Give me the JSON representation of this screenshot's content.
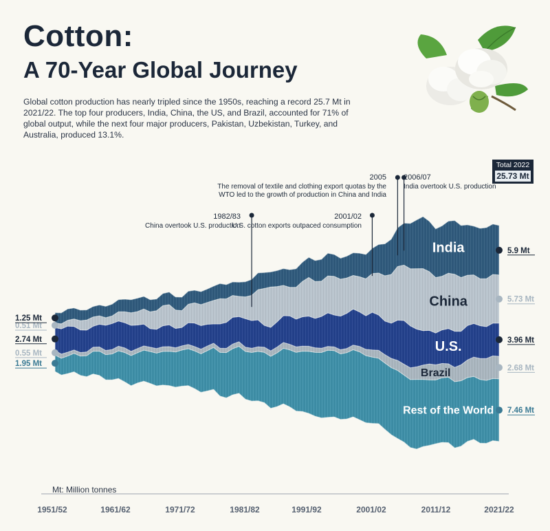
{
  "title_line1": "Cotton:",
  "title_line2": "A 70-Year Global Journey",
  "intro": "Global cotton production has nearly tripled since the 1950s, reaching a record 25.7 Mt in 2021/22. The top four producers, India, China, the US, and Brazil, accounted for 71% of global output, while the next four major producers, Pakistan, Uzbekistan, Turkey, and Australia, produced 13.1%.",
  "total_box": {
    "label": "Total 2022",
    "value": "25.73 Mt"
  },
  "unit_note": "Mt: Million tonnes",
  "colors": {
    "india": "#2f5a7c",
    "china": "#b9c4cd",
    "us": "#23418c",
    "brazil": "#aab6bf",
    "rest": "#3e8fa8",
    "dark_text": "#1b2738",
    "light_label": "#a8b6c1",
    "background": "#f9f8f2"
  },
  "annotations": [
    {
      "year": "1982/83",
      "text": "China overtook U.S. production"
    },
    {
      "year": "2001/02",
      "text": "U.S. cotton exports outpaced consumption"
    },
    {
      "year": "2005",
      "text_lines": [
        "The removal of textile and clothing export quotas by the",
        "WTO led to the growth of production in China and India"
      ]
    },
    {
      "year": "2006/07",
      "text": "India overtook U.S. production"
    }
  ],
  "chart_data": {
    "type": "area",
    "subtype": "stacked-streamgraph",
    "x_ticks": [
      "1951/52",
      "1961/62",
      "1971/72",
      "1981/82",
      "1991/92",
      "2001/02",
      "2011/12",
      "2021/22"
    ],
    "x_start": 1951,
    "x_end": 2021,
    "stack_order_bottom_to_top": [
      "Rest of the World",
      "Brazil",
      "U.S.",
      "China",
      "India"
    ],
    "series": [
      {
        "name": "Rest of the World",
        "label_start": "1.95 Mt",
        "label_end": "7.46 Mt",
        "values": [
          1.95,
          2.0,
          2.1,
          2.2,
          2.3,
          2.5,
          2.7,
          2.9,
          3.0,
          3.1,
          3.3,
          3.5,
          3.6,
          3.6,
          3.7,
          3.8,
          3.9,
          4.0,
          4.1,
          4.2,
          4.3,
          4.4,
          4.5,
          4.6,
          4.8,
          5.0,
          5.2,
          5.4,
          5.5,
          5.6,
          5.7,
          5.8,
          5.9,
          6.0,
          6.2,
          6.4,
          6.6,
          6.8,
          7.0,
          7.2,
          7.4,
          7.6,
          7.8,
          8.0,
          7.9,
          7.8,
          7.9,
          8.0,
          8.1,
          8.0,
          7.9,
          7.8,
          7.9,
          8.0,
          8.1,
          8.0,
          8.1,
          8.3,
          8.0,
          7.8,
          7.6,
          7.7,
          7.8,
          7.9,
          7.8,
          7.6,
          7.5,
          7.6,
          7.5,
          7.4,
          7.46
        ]
      },
      {
        "name": "Brazil",
        "label_start": "0.55 Mt",
        "label_end": "2.68 Mt",
        "values": [
          0.55,
          0.5,
          0.45,
          0.4,
          0.42,
          0.45,
          0.48,
          0.5,
          0.5,
          0.52,
          0.55,
          0.55,
          0.5,
          0.5,
          0.5,
          0.52,
          0.55,
          0.55,
          0.55,
          0.5,
          0.5,
          0.5,
          0.52,
          0.55,
          0.55,
          0.5,
          0.5,
          0.5,
          0.55,
          0.55,
          0.5,
          0.5,
          0.55,
          0.6,
          0.65,
          0.7,
          0.7,
          0.65,
          0.65,
          0.6,
          0.6,
          0.55,
          0.5,
          0.45,
          0.45,
          0.5,
          0.5,
          0.55,
          0.65,
          0.75,
          0.85,
          0.95,
          1.0,
          1.1,
          1.2,
          1.3,
          1.4,
          1.5,
          1.7,
          1.9,
          1.8,
          1.7,
          1.6,
          1.7,
          1.9,
          2.1,
          2.3,
          2.5,
          2.6,
          2.7,
          2.68
        ]
      },
      {
        "name": "U.S.",
        "label_start": "2.74 Mt",
        "label_end": "3.96 Mt",
        "values": [
          2.74,
          3.0,
          3.1,
          2.8,
          2.7,
          2.6,
          2.5,
          2.7,
          3.0,
          3.1,
          3.0,
          3.0,
          3.1,
          2.8,
          2.6,
          2.2,
          2.3,
          2.5,
          2.6,
          2.3,
          2.2,
          2.6,
          2.8,
          2.8,
          2.6,
          2.3,
          2.9,
          3.1,
          3.2,
          3.0,
          3.4,
          3.3,
          3.2,
          2.6,
          2.8,
          3.0,
          3.2,
          3.4,
          3.3,
          3.5,
          3.6,
          3.5,
          3.8,
          4.0,
          3.8,
          4.0,
          4.2,
          4.3,
          4.1,
          4.0,
          4.5,
          4.2,
          4.0,
          4.2,
          4.8,
          5.2,
          5.0,
          4.5,
          4.1,
          4.0,
          3.8,
          4.0,
          4.2,
          4.3,
          4.0,
          4.1,
          4.0,
          3.9,
          3.8,
          3.9,
          3.96
        ]
      },
      {
        "name": "China",
        "label_start": "0.51 Mt",
        "label_end": "5.73 Mt",
        "values": [
          0.51,
          0.6,
          0.7,
          0.9,
          1.1,
          1.2,
          1.1,
          1.0,
          0.9,
          0.9,
          1.1,
          1.3,
          1.5,
          1.6,
          1.8,
          2.0,
          2.2,
          2.4,
          2.4,
          2.2,
          2.0,
          2.2,
          2.4,
          2.5,
          2.6,
          2.8,
          3.0,
          2.8,
          2.6,
          2.4,
          2.6,
          3.0,
          3.6,
          4.4,
          4.8,
          4.2,
          3.6,
          3.4,
          3.8,
          4.2,
          4.6,
          4.4,
          4.2,
          4.4,
          4.6,
          4.4,
          4.2,
          4.0,
          4.2,
          4.4,
          4.6,
          5.0,
          5.4,
          5.8,
          6.4,
          6.6,
          6.8,
          7.2,
          7.4,
          7.0,
          6.6,
          6.4,
          6.6,
          6.8,
          6.4,
          6.0,
          5.8,
          5.6,
          5.7,
          5.8,
          5.73
        ]
      },
      {
        "name": "India",
        "label_start": "1.25 Mt",
        "label_end": "5.9 Mt",
        "values": [
          1.25,
          1.3,
          1.35,
          1.3,
          1.25,
          1.2,
          1.25,
          1.3,
          1.35,
          1.4,
          1.45,
          1.5,
          1.55,
          1.6,
          1.5,
          1.45,
          1.4,
          1.45,
          1.5,
          1.55,
          1.6,
          1.55,
          1.5,
          1.55,
          1.6,
          1.7,
          1.8,
          1.7,
          1.6,
          1.7,
          1.8,
          1.9,
          2.0,
          1.9,
          1.8,
          1.9,
          2.0,
          2.1,
          2.2,
          2.3,
          2.4,
          2.5,
          2.6,
          2.7,
          2.6,
          2.5,
          2.6,
          2.7,
          2.8,
          2.9,
          3.0,
          3.4,
          3.8,
          4.2,
          4.6,
          5.0,
          5.4,
          5.8,
          6.2,
          6.0,
          5.8,
          6.0,
          6.2,
          6.4,
          6.2,
          6.0,
          5.8,
          6.0,
          6.1,
          6.0,
          5.9
        ]
      }
    ],
    "total_2022": 25.73,
    "unit": "Mt"
  }
}
